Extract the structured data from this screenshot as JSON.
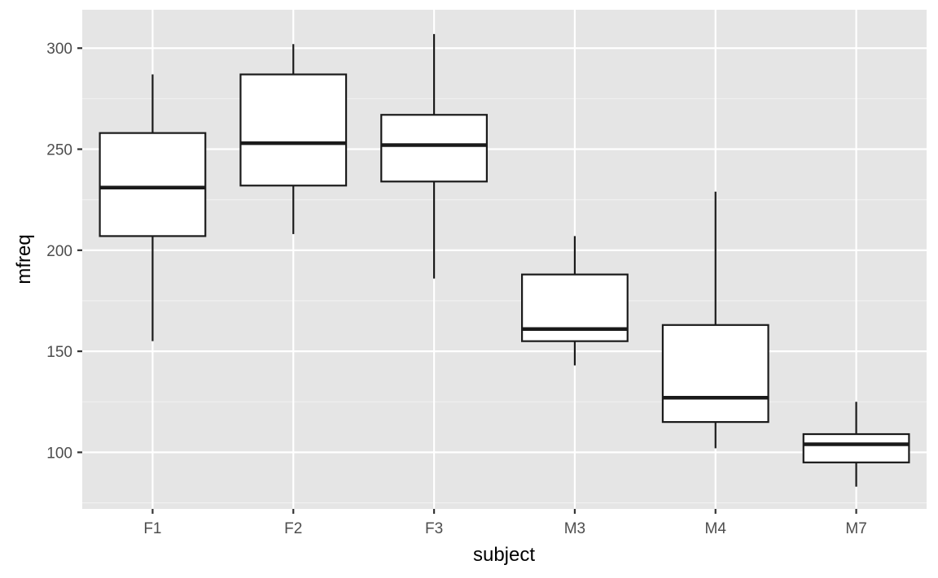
{
  "chart_data": {
    "type": "box",
    "xlabel": "subject",
    "ylabel": "mfreq",
    "ylim": [
      72,
      319
    ],
    "yticks": [
      100,
      150,
      200,
      250,
      300
    ],
    "ytick_labels": [
      "100",
      "150",
      "200",
      "250",
      "300"
    ],
    "categories": [
      "F1",
      "F2",
      "F3",
      "M3",
      "M4",
      "M7"
    ],
    "boxes": [
      {
        "category": "F1",
        "whisker_low": 155,
        "q1": 207,
        "median": 231,
        "q3": 258,
        "whisker_high": 287
      },
      {
        "category": "F2",
        "whisker_low": 208,
        "q1": 232,
        "median": 253,
        "q3": 287,
        "whisker_high": 302
      },
      {
        "category": "F3",
        "whisker_low": 186,
        "q1": 234,
        "median": 252,
        "q3": 267,
        "whisker_high": 307
      },
      {
        "category": "M3",
        "whisker_low": 143,
        "q1": 155,
        "median": 161,
        "q3": 188,
        "whisker_high": 207
      },
      {
        "category": "M4",
        "whisker_low": 102,
        "q1": 115,
        "median": 127,
        "q3": 163,
        "whisker_high": 229
      },
      {
        "category": "M7",
        "whisker_low": 83,
        "q1": 95,
        "median": 104,
        "q3": 109,
        "whisker_high": 125
      }
    ],
    "grid": true,
    "legend": "none",
    "colors": {
      "panel_background": "#e5e5e5",
      "grid_major": "#ffffff",
      "grid_minor": "#f2f2f2",
      "box_fill": "#ffffff",
      "box_stroke": "#1a1a1a",
      "tick_label": "#4d4d4d",
      "tick_mark": "#333333",
      "axis_title": "#000000"
    }
  }
}
